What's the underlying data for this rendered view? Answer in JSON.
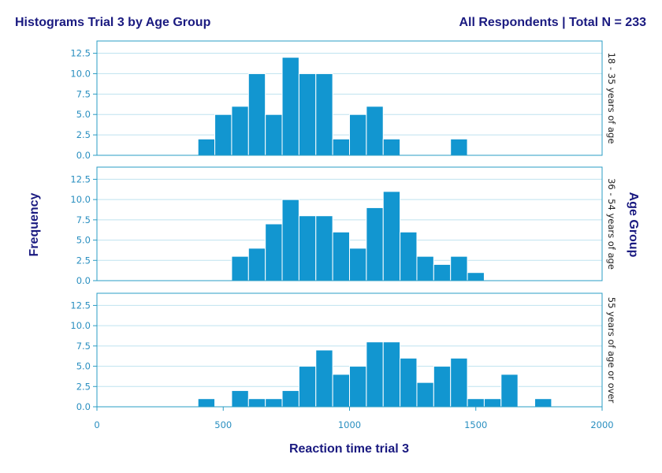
{
  "header": {
    "title": "Histograms Trial 3 by Age Group",
    "subtitle": "All Respondents | Total N = 233"
  },
  "colors": {
    "bar_fill": "#1296d0",
    "bar_stroke": "#ffffff",
    "grid": "#bfe3ef",
    "frame": "#2a9cc4",
    "tick_text": "#2a8fc0",
    "title_text": "#1a1a80"
  },
  "chart_data": {
    "type": "bar",
    "title": "Histograms Trial 3 by Age Group",
    "subtitle": "All Respondents | Total N = 233",
    "xlabel": "Reaction time trial 3",
    "ylabel": "Frequency",
    "panel_axis_label": "Age Group",
    "xlim": [
      0,
      2000
    ],
    "x_ticks": [
      "0",
      "500",
      "1000",
      "1500",
      "2000"
    ],
    "ylim": [
      0,
      14
    ],
    "y_ticks": [
      "0.0",
      "2.5",
      "5.0",
      "7.5",
      "10.0",
      "12.5"
    ],
    "bin_width": 66.67,
    "grid": true,
    "bin_edges_start": [
      400,
      466.67,
      533.33,
      600,
      666.67,
      733.33,
      800,
      866.67,
      933.33,
      1000,
      1066.67,
      1133.33,
      1200,
      1266.67,
      1333.33,
      1400,
      1466.67,
      1533.33,
      1600,
      1666.67,
      1733.33
    ],
    "series": [
      {
        "name": "18 - 35 years of age",
        "values": [
          2,
          5,
          6,
          10,
          5,
          12,
          10,
          10,
          2,
          5,
          6,
          2,
          0,
          0,
          0,
          2,
          0,
          0,
          0,
          0,
          0
        ]
      },
      {
        "name": "36 - 54 years of age",
        "values": [
          0,
          0,
          3,
          4,
          7,
          10,
          8,
          8,
          6,
          4,
          9,
          11,
          6,
          3,
          2,
          3,
          1,
          0,
          0,
          0,
          0
        ]
      },
      {
        "name": "55 years of age or over",
        "values": [
          1,
          0,
          2,
          1,
          1,
          2,
          5,
          7,
          4,
          5,
          8,
          8,
          6,
          3,
          5,
          6,
          1,
          1,
          4,
          0,
          1
        ]
      }
    ]
  }
}
